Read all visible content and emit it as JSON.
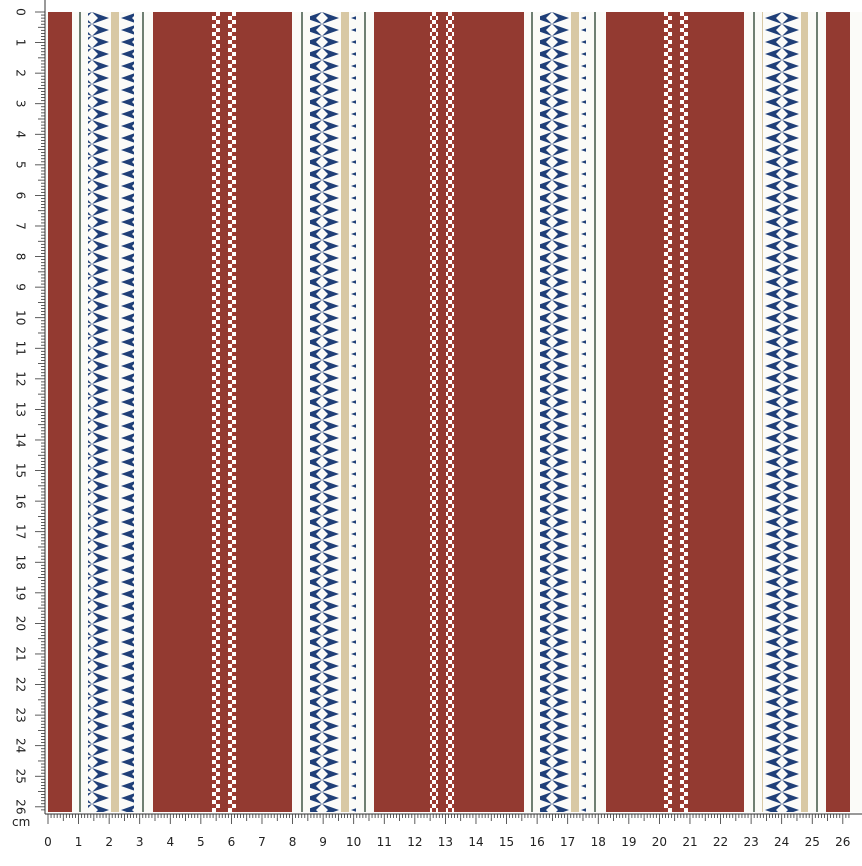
{
  "ruler": {
    "unit": "cm",
    "x_labels": [
      0,
      1,
      2,
      3,
      4,
      5,
      6,
      7,
      8,
      9,
      10,
      11,
      12,
      13,
      14,
      15,
      16,
      17,
      18,
      19,
      20,
      21,
      22,
      23,
      24,
      25,
      26
    ],
    "y_labels": [
      0,
      1,
      2,
      3,
      4,
      5,
      6,
      7,
      8,
      9,
      10,
      11,
      12,
      13,
      14,
      15,
      16,
      17,
      18,
      19,
      20,
      21,
      22,
      23,
      24,
      25,
      26
    ]
  }
}
